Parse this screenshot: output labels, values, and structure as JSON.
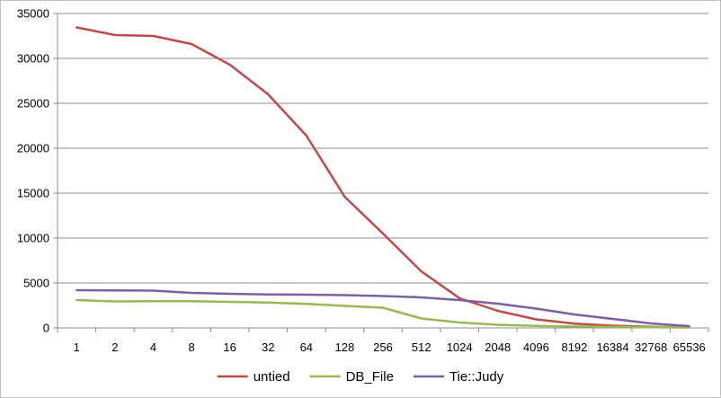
{
  "chart_data": {
    "type": "line",
    "categories": [
      "1",
      "2",
      "4",
      "8",
      "16",
      "32",
      "64",
      "128",
      "256",
      "512",
      "1024",
      "2048",
      "4096",
      "8192",
      "16384",
      "32768",
      "65536"
    ],
    "ylim": [
      0,
      35000
    ],
    "yticks": [
      "0",
      "5000",
      "10000",
      "15000",
      "20000",
      "25000",
      "30000",
      "35000"
    ],
    "grid": true,
    "legend_position": "bottom",
    "series": [
      {
        "name": "untied",
        "color": "#be4b48",
        "values": [
          33450,
          32600,
          32500,
          31600,
          29300,
          26000,
          21400,
          14600,
          10500,
          6300,
          3300,
          1900,
          950,
          480,
          250,
          120,
          60
        ]
      },
      {
        "name": "DB_File",
        "color": "#98b954",
        "values": [
          3100,
          2950,
          2980,
          2970,
          2900,
          2820,
          2680,
          2450,
          2250,
          1050,
          600,
          350,
          230,
          160,
          110,
          80,
          50
        ]
      },
      {
        "name": "Tie::Judy",
        "color": "#7d60a0",
        "values": [
          4200,
          4180,
          4150,
          3900,
          3800,
          3720,
          3700,
          3650,
          3550,
          3400,
          3100,
          2700,
          2150,
          1500,
          1000,
          500,
          200
        ]
      }
    ]
  }
}
